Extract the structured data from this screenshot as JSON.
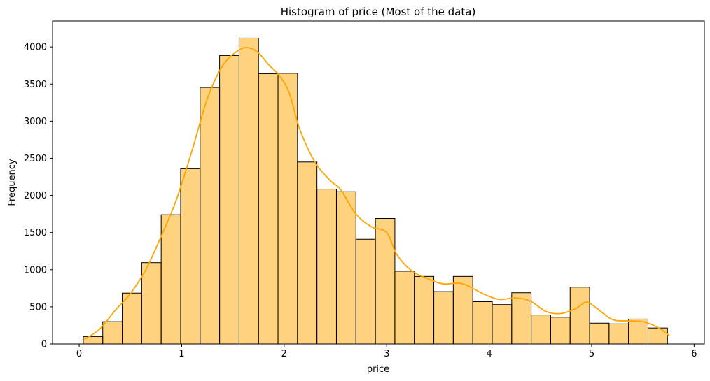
{
  "chart_data": {
    "type": "bar",
    "title": "Histogram of price (Most of the data)",
    "xlabel": "price",
    "ylabel": "Frequency",
    "xlim": [
      -0.26,
      6.1
    ],
    "ylim": [
      0,
      4350
    ],
    "xticks": [
      0,
      1,
      2,
      3,
      4,
      5,
      6
    ],
    "yticks": [
      0,
      500,
      1000,
      1500,
      2000,
      2500,
      3000,
      3500,
      4000
    ],
    "grid": false,
    "bar_color": "#ffa500",
    "bar_alpha": 0.5,
    "edge_color": "#000000",
    "line_color": "#ffa500",
    "bins": [
      {
        "x0": 0.04,
        "x1": 0.23,
        "count": 100
      },
      {
        "x0": 0.23,
        "x1": 0.42,
        "count": 300
      },
      {
        "x0": 0.42,
        "x1": 0.61,
        "count": 685
      },
      {
        "x0": 0.61,
        "x1": 0.8,
        "count": 1095
      },
      {
        "x0": 0.8,
        "x1": 0.99,
        "count": 1740
      },
      {
        "x0": 0.99,
        "x1": 1.18,
        "count": 2360
      },
      {
        "x0": 1.18,
        "x1": 1.37,
        "count": 3455
      },
      {
        "x0": 1.37,
        "x1": 1.56,
        "count": 3885
      },
      {
        "x0": 1.56,
        "x1": 1.75,
        "count": 4120
      },
      {
        "x0": 1.75,
        "x1": 1.94,
        "count": 3640
      },
      {
        "x0": 1.94,
        "x1": 2.13,
        "count": 3645
      },
      {
        "x0": 2.13,
        "x1": 2.32,
        "count": 2450
      },
      {
        "x0": 2.32,
        "x1": 2.51,
        "count": 2085
      },
      {
        "x0": 2.51,
        "x1": 2.7,
        "count": 2050
      },
      {
        "x0": 2.7,
        "x1": 2.89,
        "count": 1410
      },
      {
        "x0": 2.89,
        "x1": 3.08,
        "count": 1690
      },
      {
        "x0": 3.08,
        "x1": 3.27,
        "count": 980
      },
      {
        "x0": 3.27,
        "x1": 3.46,
        "count": 910
      },
      {
        "x0": 3.46,
        "x1": 3.65,
        "count": 705
      },
      {
        "x0": 3.65,
        "x1": 3.84,
        "count": 910
      },
      {
        "x0": 3.84,
        "x1": 4.03,
        "count": 570
      },
      {
        "x0": 4.03,
        "x1": 4.22,
        "count": 530
      },
      {
        "x0": 4.22,
        "x1": 4.41,
        "count": 690
      },
      {
        "x0": 4.41,
        "x1": 4.6,
        "count": 390
      },
      {
        "x0": 4.6,
        "x1": 4.79,
        "count": 360
      },
      {
        "x0": 4.79,
        "x1": 4.98,
        "count": 765
      },
      {
        "x0": 4.98,
        "x1": 5.17,
        "count": 280
      },
      {
        "x0": 5.17,
        "x1": 5.36,
        "count": 270
      },
      {
        "x0": 5.36,
        "x1": 5.55,
        "count": 335
      },
      {
        "x0": 5.55,
        "x1": 5.74,
        "count": 215
      }
    ],
    "kde": {
      "x": [
        0.05,
        0.2,
        0.35,
        0.5,
        0.65,
        0.8,
        0.95,
        1.1,
        1.25,
        1.4,
        1.55,
        1.65,
        1.75,
        1.85,
        1.95,
        2.05,
        2.15,
        2.3,
        2.45,
        2.55,
        2.7,
        2.85,
        3.0,
        3.1,
        3.25,
        3.4,
        3.55,
        3.7,
        3.8,
        3.95,
        4.1,
        4.25,
        4.4,
        4.55,
        4.7,
        4.85,
        4.95,
        5.05,
        5.2,
        5.35,
        5.5,
        5.65,
        5.76
      ],
      "y": [
        60,
        200,
        450,
        680,
        1000,
        1450,
        1950,
        2600,
        3300,
        3750,
        3950,
        3990,
        3920,
        3760,
        3620,
        3380,
        2900,
        2450,
        2200,
        2080,
        1750,
        1580,
        1500,
        1200,
        980,
        880,
        810,
        820,
        780,
        670,
        600,
        620,
        580,
        440,
        410,
        480,
        565,
        480,
        330,
        310,
        300,
        220,
        110
      ]
    }
  }
}
